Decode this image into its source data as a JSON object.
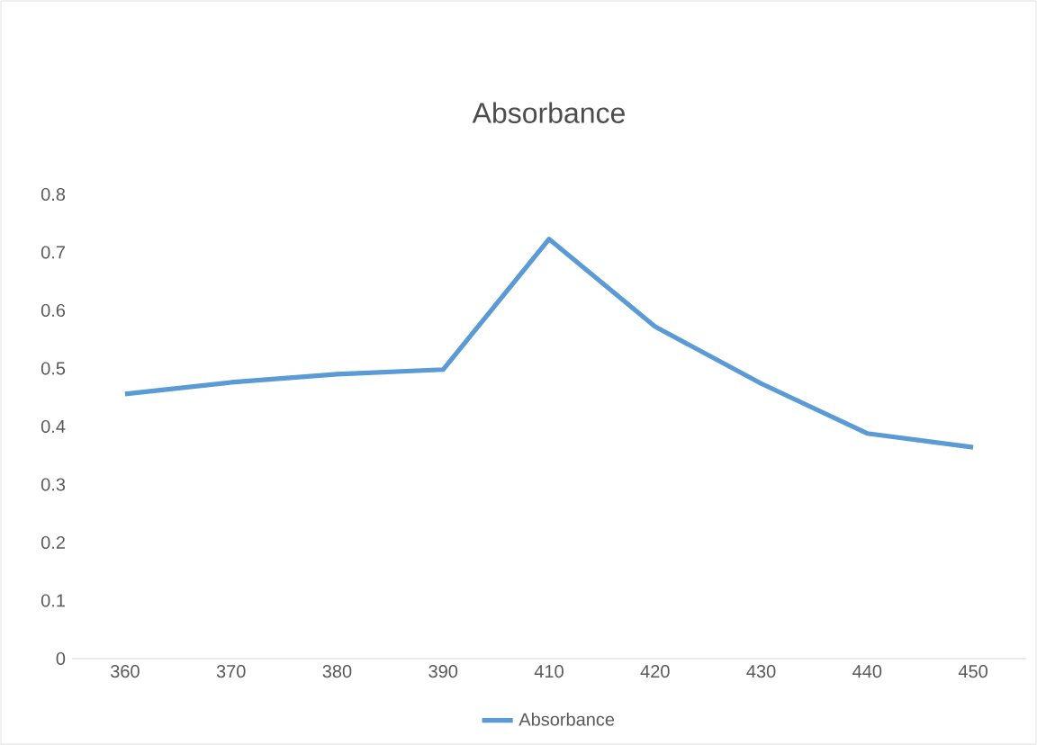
{
  "chart_data": {
    "type": "line",
    "title": "Absorbance",
    "categories": [
      "360",
      "370",
      "380",
      "390",
      "410",
      "420",
      "430",
      "440",
      "450"
    ],
    "series": [
      {
        "name": "Absorbance",
        "color": "#5b9bd5",
        "values": [
          0.456,
          0.476,
          0.49,
          0.498,
          0.723,
          0.572,
          0.474,
          0.388,
          0.364
        ]
      }
    ],
    "ylim": [
      0,
      0.8
    ],
    "yticks": [
      0,
      0.1,
      0.2,
      0.3,
      0.4,
      0.5,
      0.6,
      0.7,
      0.8
    ],
    "grid": false,
    "legend": "bottom",
    "marker": "none",
    "line_style": "solid"
  }
}
